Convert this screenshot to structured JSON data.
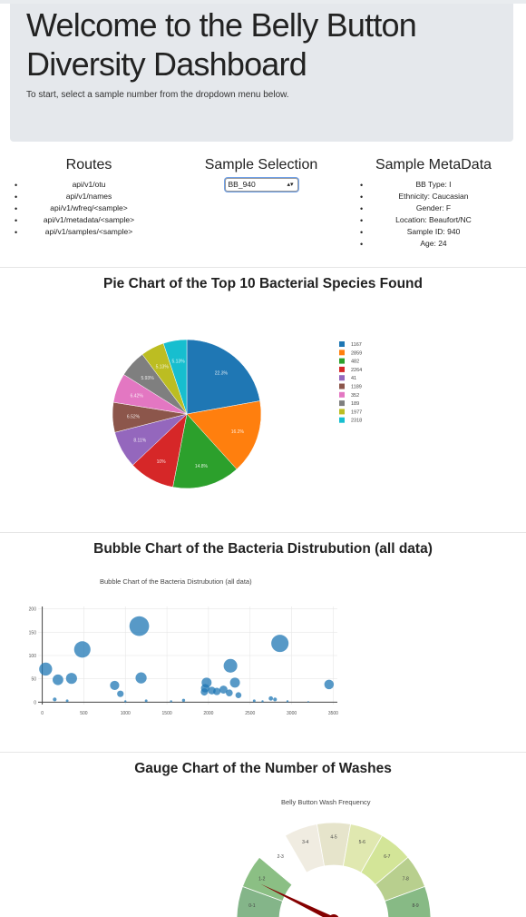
{
  "header": {
    "title": "Welcome to the Belly Button Diversity Dashboard",
    "subtitle": "To start, select a sample number from the dropdown menu below."
  },
  "routes": {
    "heading": "Routes",
    "items": [
      "api/v1/otu",
      "api/v1/names",
      "api/v1/wfreq/<sample>",
      "api/v1/metadata/<sample>",
      "api/v1/samples/<sample>"
    ]
  },
  "selection": {
    "heading": "Sample Selection",
    "selected": "BB_940"
  },
  "metadata": {
    "heading": "Sample MetaData",
    "items": [
      "BB Type: I",
      "Ethnicity: Caucasian",
      "Gender: F",
      "Location: Beaufort/NC",
      "Sample ID: 940",
      "Age: 24"
    ]
  },
  "sections": {
    "pie_title": "Pie Chart of the Top 10 Bacterial Species Found",
    "bubble_title": "Bubble Chart of the Bacteria Distrubution (all data)",
    "gauge_title": "Gauge Chart of the Number of Washes"
  },
  "chart_data": [
    {
      "type": "pie",
      "slices": [
        {
          "label": "1167",
          "percent": 22.3,
          "color": "#1f77b4"
        },
        {
          "label": "2859",
          "percent": 16.2,
          "color": "#ff7f0e"
        },
        {
          "label": "482",
          "percent": 14.8,
          "color": "#2ca02c"
        },
        {
          "label": "2264",
          "percent": 10.0,
          "color": "#d62728"
        },
        {
          "label": "41",
          "percent": 8.11,
          "color": "#9467bd"
        },
        {
          "label": "1189",
          "percent": 6.52,
          "color": "#8c564b"
        },
        {
          "label": "352",
          "percent": 6.42,
          "color": "#e377c2"
        },
        {
          "label": "189",
          "percent": 5.93,
          "color": "#7f7f7f"
        },
        {
          "label": "1977",
          "percent": 5.13,
          "color": "#bcbd22"
        },
        {
          "label": "2318",
          "percent": 5.13,
          "color": "#17becf"
        }
      ],
      "slice_labels": [
        "22.3%",
        "16.2%",
        "14.8%",
        "10%",
        "8.11%",
        "6.52%",
        "6.42%",
        "5.93%",
        "5.13%",
        "5.13%"
      ],
      "legend_position": "right"
    },
    {
      "type": "scatter",
      "title": "Bubble Chart of the Bacteria Distrubution (all data)",
      "xlim": [
        -50,
        3550
      ],
      "ylim": [
        -5,
        205
      ],
      "xticks": [
        "0",
        "500",
        "1000",
        "1500",
        "2000",
        "2500",
        "3000",
        "3500"
      ],
      "yticks": [
        "0",
        "50",
        "100",
        "150",
        "200"
      ],
      "grid": true,
      "color": "#1f77b4",
      "points": [
        {
          "x": 1167,
          "y": 163
        },
        {
          "x": 2859,
          "y": 126
        },
        {
          "x": 482,
          "y": 113
        },
        {
          "x": 2264,
          "y": 78
        },
        {
          "x": 41,
          "y": 71
        },
        {
          "x": 352,
          "y": 51
        },
        {
          "x": 189,
          "y": 48
        },
        {
          "x": 1189,
          "y": 52
        },
        {
          "x": 1977,
          "y": 42
        },
        {
          "x": 2318,
          "y": 42
        },
        {
          "x": 871,
          "y": 36
        },
        {
          "x": 3450,
          "y": 38
        },
        {
          "x": 1960,
          "y": 30
        },
        {
          "x": 2180,
          "y": 27
        },
        {
          "x": 2040,
          "y": 25
        },
        {
          "x": 2250,
          "y": 20
        },
        {
          "x": 2100,
          "y": 23
        },
        {
          "x": 940,
          "y": 18
        },
        {
          "x": 2360,
          "y": 15
        },
        {
          "x": 1950,
          "y": 22
        },
        {
          "x": 2750,
          "y": 8
        },
        {
          "x": 2800,
          "y": 6
        },
        {
          "x": 1700,
          "y": 4
        },
        {
          "x": 150,
          "y": 6
        },
        {
          "x": 300,
          "y": 3
        },
        {
          "x": 1250,
          "y": 3
        },
        {
          "x": 1550,
          "y": 2
        },
        {
          "x": 2950,
          "y": 2
        },
        {
          "x": 3200,
          "y": 1
        },
        {
          "x": 1000,
          "y": 2
        },
        {
          "x": 2550,
          "y": 3
        },
        {
          "x": 2650,
          "y": 2
        }
      ]
    },
    {
      "type": "gauge",
      "title": "Belly Button Wash Frequency",
      "segments": [
        "0-1",
        "1-2",
        "2-3",
        "3-4",
        "4-5",
        "5-6",
        "6-7",
        "7-8",
        "8-9"
      ],
      "colors": [
        "#84b589",
        "#8bbf84",
        "#ffffff",
        "#f0ece1",
        "#e6e4cb",
        "#e0e8b0",
        "#d3e598",
        "#b8cf8e",
        "#87ba85"
      ],
      "value": 1.3
    }
  ]
}
